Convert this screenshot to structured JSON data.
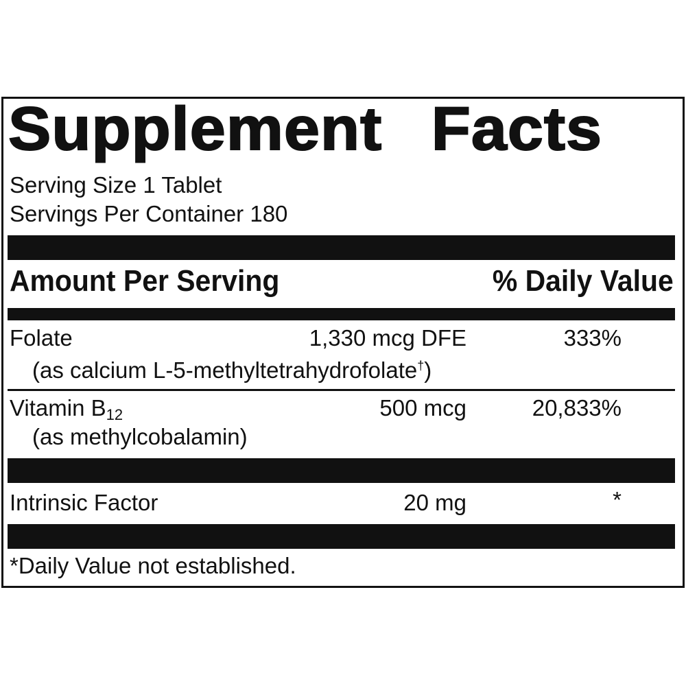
{
  "title": {
    "word1": "Supplement",
    "word2": "Facts"
  },
  "serving": {
    "size": "Serving Size 1 Tablet",
    "per_container": "Servings Per Container 180"
  },
  "header": {
    "amount_label": "Amount Per Serving",
    "dv_label": "% Daily Value"
  },
  "nutrients": [
    {
      "name": "Folate",
      "detail": "(as calcium L-5-methyltetrahydrofolate",
      "detail_sup": "†",
      "detail_close": ")",
      "amount": "1,330 mcg DFE",
      "dv": "333%"
    },
    {
      "name": "Vitamin B",
      "name_sub": "12",
      "detail": "(as methylcobalamin)",
      "amount": "500 mcg",
      "dv": "20,833%"
    },
    {
      "name": "Intrinsic Factor",
      "amount": "20 mg",
      "dv": "*"
    }
  ],
  "footnote": "*Daily Value not established."
}
